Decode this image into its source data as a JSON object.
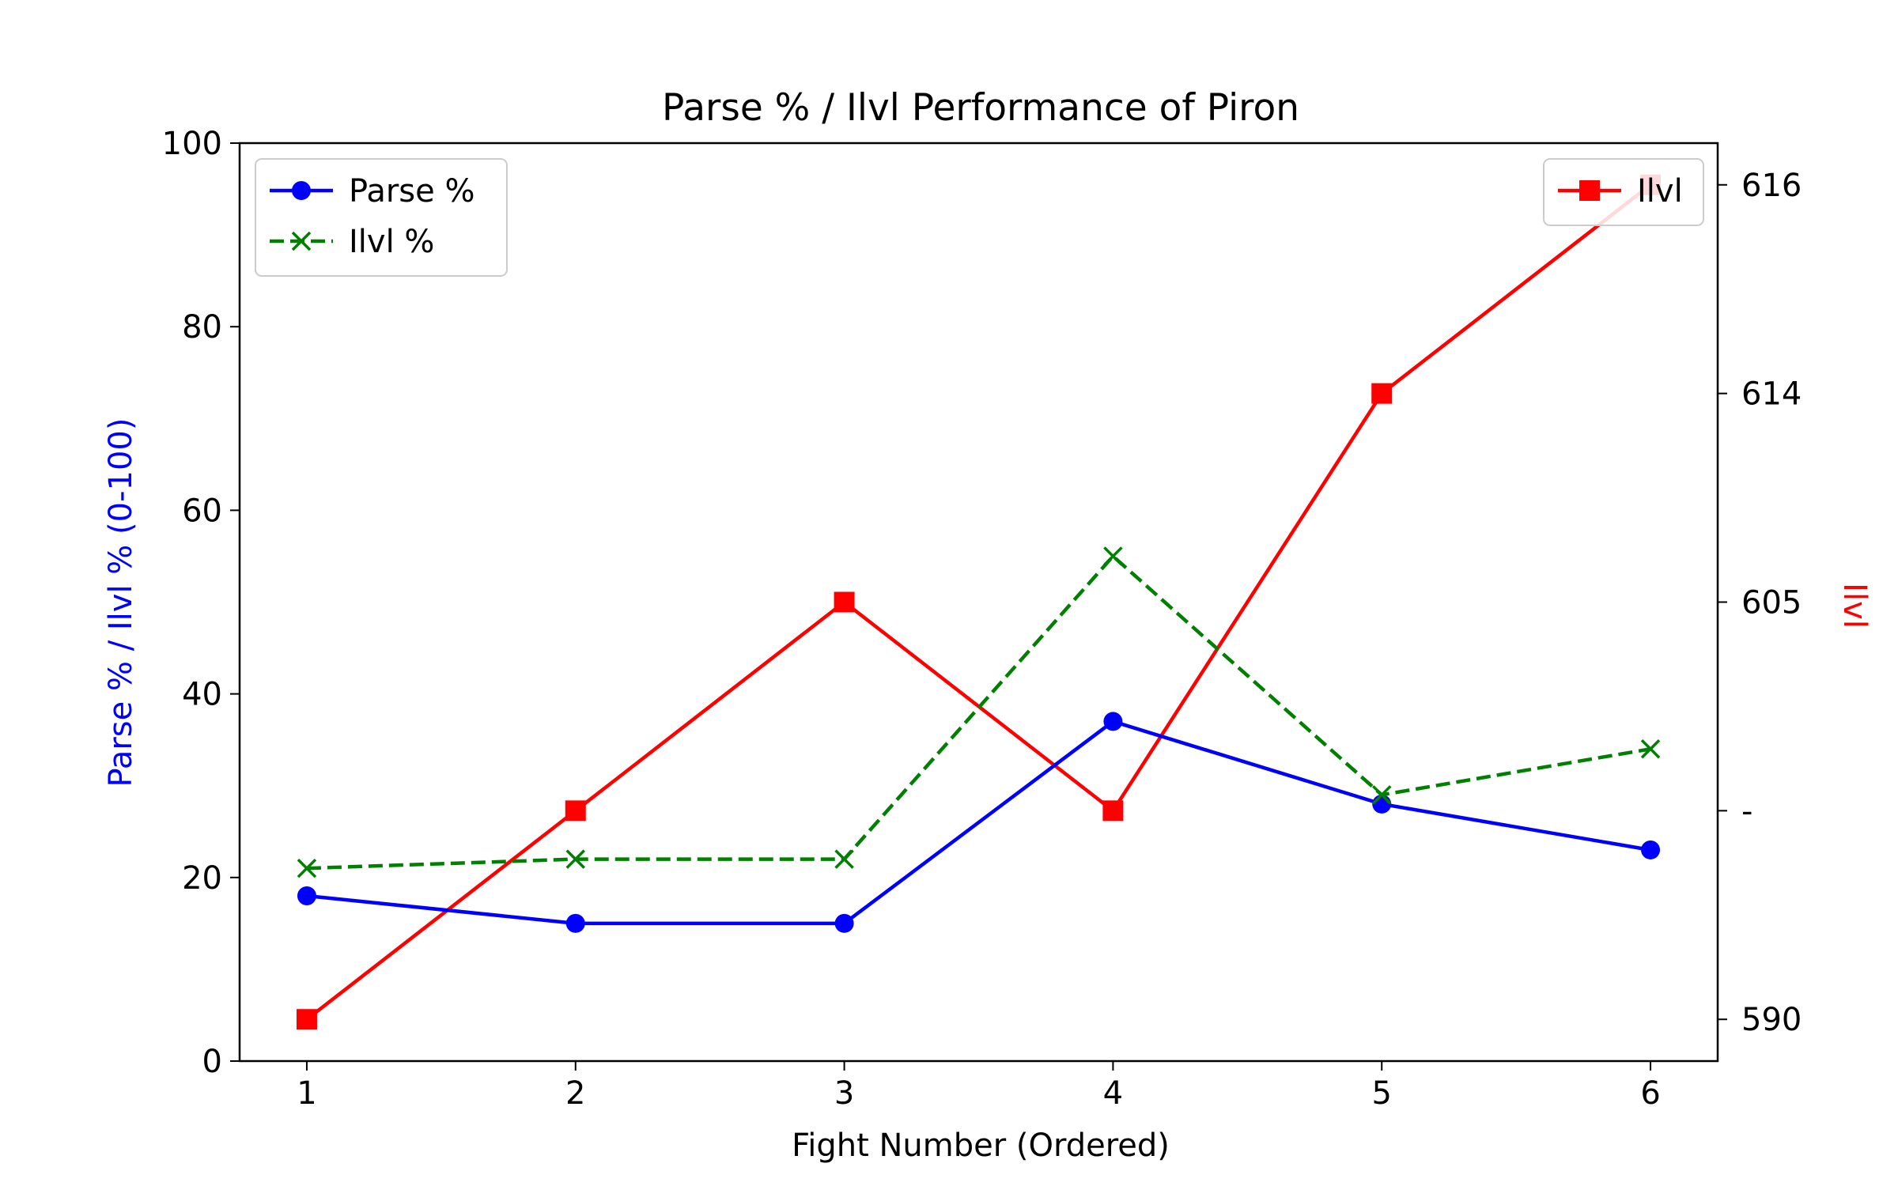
{
  "chart_data": {
    "type": "line",
    "title": "Parse % / Ilvl Performance of Piron",
    "xlabel": "Fight Number (Ordered)",
    "ylabel": "Parse % / Ilvl % (0-100)",
    "y2label": "Ilvl",
    "x": [
      1,
      2,
      3,
      4,
      5,
      6
    ],
    "xlim": [
      0.75,
      6.25
    ],
    "ylim": [
      0,
      100
    ],
    "y_ticks": [
      0,
      20,
      40,
      60,
      80,
      100
    ],
    "y2_ticks": [
      "590",
      "-",
      "605",
      "614",
      "616"
    ],
    "grid": false,
    "series": [
      {
        "name": "Parse %",
        "axis": "left",
        "color": "#0000ff",
        "style": "solid",
        "marker": "circle",
        "values": [
          18,
          15,
          15,
          37,
          28,
          23
        ]
      },
      {
        "name": "Ilvl %",
        "axis": "left",
        "color": "#008000",
        "style": "dashed",
        "marker": "x",
        "values": [
          21,
          22,
          22,
          55,
          29,
          34
        ]
      },
      {
        "name": "Ilvl",
        "axis": "right",
        "color": "#ff0000",
        "style": "solid",
        "marker": "square",
        "values": [
          "590",
          "-",
          "605",
          "-",
          "614",
          "616"
        ]
      }
    ],
    "legends": [
      {
        "placement": "upper-left",
        "entries": [
          "Parse %",
          "Ilvl %"
        ]
      },
      {
        "placement": "upper-right",
        "entries": [
          "Ilvl"
        ]
      }
    ],
    "colors": {
      "left_axis_label": "#0000ff",
      "right_axis_label": "#ff0000"
    }
  }
}
